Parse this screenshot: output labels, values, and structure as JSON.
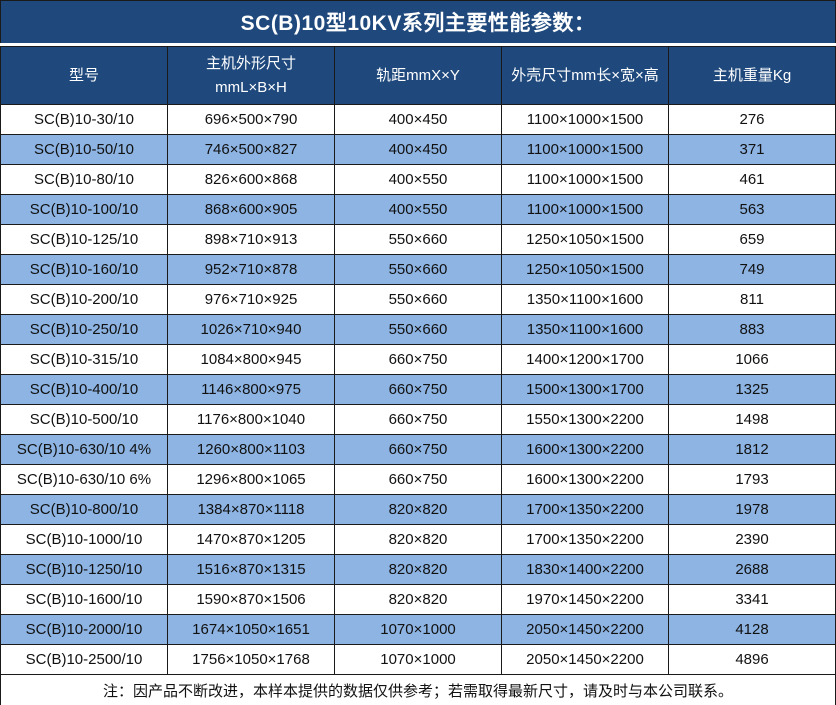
{
  "title": "SC(B)10型10KV系列主要性能参数：",
  "colors": {
    "header_bg": "#1F497D",
    "row_alt_bg": "#8DB4E3",
    "border": "#1a1a1a"
  },
  "table": {
    "headers": [
      "型号",
      "主机外形尺寸\nmmL×B×H",
      "轨距mmX×Y",
      "外壳尺寸mm长×宽×高",
      "主机重量Kg"
    ],
    "rows": [
      [
        "SC(B)10-30/10",
        "696×500×790",
        "400×450",
        "1100×1000×1500",
        "276"
      ],
      [
        "SC(B)10-50/10",
        "746×500×827",
        "400×450",
        "1100×1000×1500",
        "371"
      ],
      [
        "SC(B)10-80/10",
        "826×600×868",
        "400×550",
        "1100×1000×1500",
        "461"
      ],
      [
        "SC(B)10-100/10",
        "868×600×905",
        "400×550",
        "1100×1000×1500",
        "563"
      ],
      [
        "SC(B)10-125/10",
        "898×710×913",
        "550×660",
        "1250×1050×1500",
        "659"
      ],
      [
        "SC(B)10-160/10",
        "952×710×878",
        "550×660",
        "1250×1050×1500",
        "749"
      ],
      [
        "SC(B)10-200/10",
        "976×710×925",
        "550×660",
        "1350×1100×1600",
        "811"
      ],
      [
        "SC(B)10-250/10",
        "1026×710×940",
        "550×660",
        "1350×1100×1600",
        "883"
      ],
      [
        "SC(B)10-315/10",
        "1084×800×945",
        "660×750",
        "1400×1200×1700",
        "1066"
      ],
      [
        "SC(B)10-400/10",
        "1146×800×975",
        "660×750",
        "1500×1300×1700",
        "1325"
      ],
      [
        "SC(B)10-500/10",
        "1176×800×1040",
        "660×750",
        "1550×1300×2200",
        "1498"
      ],
      [
        "SC(B)10-630/10 4%",
        "1260×800×1103",
        "660×750",
        "1600×1300×2200",
        "1812"
      ],
      [
        "SC(B)10-630/10 6%",
        "1296×800×1065",
        "660×750",
        "1600×1300×2200",
        "1793"
      ],
      [
        "SC(B)10-800/10",
        "1384×870×1118",
        "820×820",
        "1700×1350×2200",
        "1978"
      ],
      [
        "SC(B)10-1000/10",
        "1470×870×1205",
        "820×820",
        "1700×1350×2200",
        "2390"
      ],
      [
        "SC(B)10-1250/10",
        "1516×870×1315",
        "820×820",
        "1830×1400×2200",
        "2688"
      ],
      [
        "SC(B)10-1600/10",
        "1590×870×1506",
        "820×820",
        "1970×1450×2200",
        "3341"
      ],
      [
        "SC(B)10-2000/10",
        "1674×1050×1651",
        "1070×1000",
        "2050×1450×2200",
        "4128"
      ],
      [
        "SC(B)10-2500/10",
        "1756×1050×1768",
        "1070×1000",
        "2050×1450×2200",
        "4896"
      ]
    ]
  },
  "footnote": "注：因产品不断改进，本样本提供的数据仅供参考；若需取得最新尺寸，请及时与本公司联系。"
}
